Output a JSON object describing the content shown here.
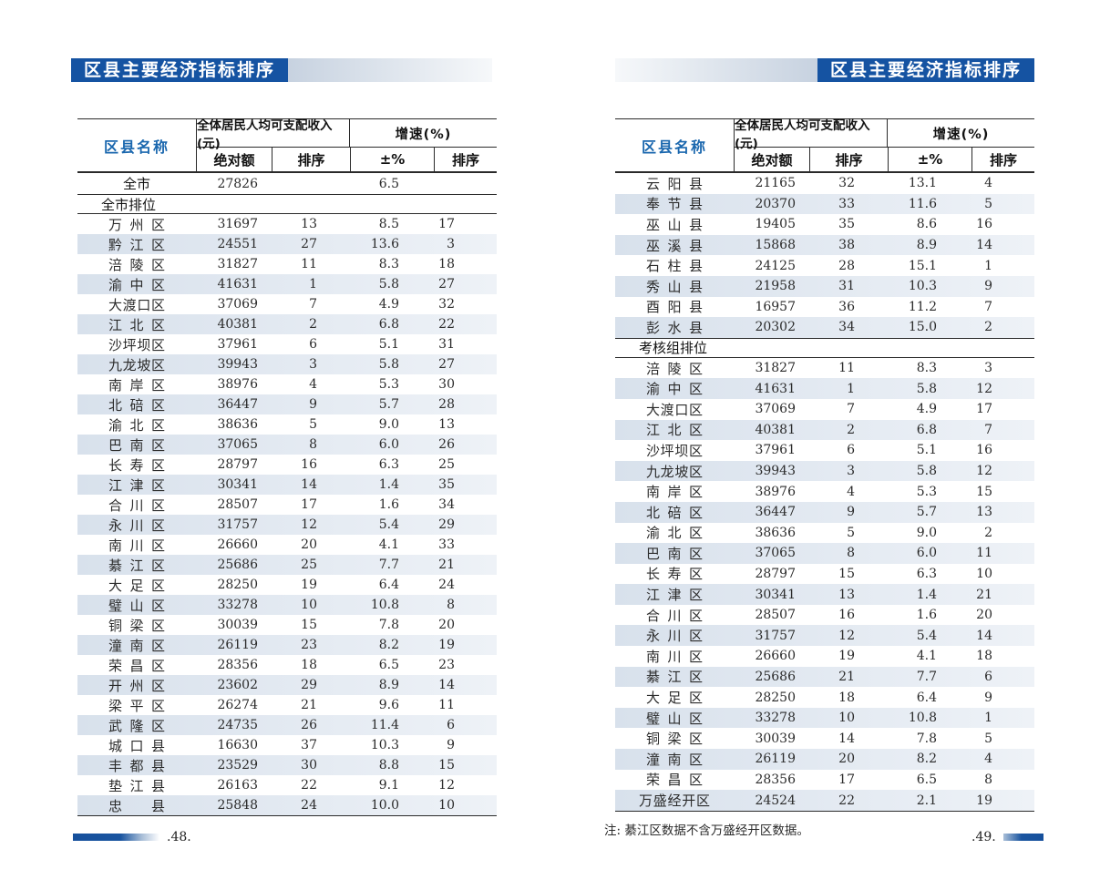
{
  "colors": {
    "title_bg": "#1553a2",
    "header_name_text": "#1a67ae",
    "row_shade": "#dce4ee",
    "footer_bar": "#1a55a0"
  },
  "page_left": {
    "title": "区县主要经济指标排序",
    "page_number": ".48.",
    "table": {
      "header": {
        "name": "区县名称",
        "income_group": "全体居民人均可支配收入(元)",
        "growth_group": "增速(%)",
        "abs": "绝对额",
        "rank1": "排序",
        "pct": "±%",
        "rank2": "排序"
      },
      "summary": {
        "name": "全市",
        "abs": "27826",
        "rank1": "",
        "pct": "6.5",
        "rank2": ""
      },
      "sections": [
        {
          "label": "全市排位",
          "rows": [
            [
              "万州区",
              "31697",
              "13",
              "8.5",
              "17"
            ],
            [
              "黔江区",
              "24551",
              "27",
              "13.6",
              "3"
            ],
            [
              "涪陵区",
              "31827",
              "11",
              "8.3",
              "18"
            ],
            [
              "渝中区",
              "41631",
              "1",
              "5.8",
              "27"
            ],
            [
              "大渡口区",
              "37069",
              "7",
              "4.9",
              "32"
            ],
            [
              "江北区",
              "40381",
              "2",
              "6.8",
              "22"
            ],
            [
              "沙坪坝区",
              "37961",
              "6",
              "5.1",
              "31"
            ],
            [
              "九龙坡区",
              "39943",
              "3",
              "5.8",
              "27"
            ],
            [
              "南岸区",
              "38976",
              "4",
              "5.3",
              "30"
            ],
            [
              "北碚区",
              "36447",
              "9",
              "5.7",
              "28"
            ],
            [
              "渝北区",
              "38636",
              "5",
              "9.0",
              "13"
            ],
            [
              "巴南区",
              "37065",
              "8",
              "6.0",
              "26"
            ],
            [
              "长寿区",
              "28797",
              "16",
              "6.3",
              "25"
            ],
            [
              "江津区",
              "30341",
              "14",
              "1.4",
              "35"
            ],
            [
              "合川区",
              "28507",
              "17",
              "1.6",
              "34"
            ],
            [
              "永川区",
              "31757",
              "12",
              "5.4",
              "29"
            ],
            [
              "南川区",
              "26660",
              "20",
              "4.1",
              "33"
            ],
            [
              "綦江区",
              "25686",
              "25",
              "7.7",
              "21"
            ],
            [
              "大足区",
              "28250",
              "19",
              "6.4",
              "24"
            ],
            [
              "璧山区",
              "33278",
              "10",
              "10.8",
              "8"
            ],
            [
              "铜梁区",
              "30039",
              "15",
              "7.8",
              "20"
            ],
            [
              "潼南区",
              "26119",
              "23",
              "8.2",
              "19"
            ],
            [
              "荣昌区",
              "28356",
              "18",
              "6.5",
              "23"
            ],
            [
              "开州区",
              "23602",
              "29",
              "8.9",
              "14"
            ],
            [
              "梁平区",
              "26274",
              "21",
              "9.6",
              "11"
            ],
            [
              "武隆区",
              "24735",
              "26",
              "11.4",
              "6"
            ],
            [
              "城口县",
              "16630",
              "37",
              "10.3",
              "9"
            ],
            [
              "丰都县",
              "23529",
              "30",
              "8.8",
              "15"
            ],
            [
              "垫江县",
              "26163",
              "22",
              "9.1",
              "12"
            ],
            [
              "忠县",
              "25848",
              "24",
              "10.0",
              "10"
            ]
          ]
        }
      ]
    }
  },
  "page_right": {
    "title": "区县主要经济指标排序",
    "page_number": ".49.",
    "note": "注: 綦江区数据不含万盛经开区数据。",
    "table": {
      "header": {
        "name": "区县名称",
        "income_group": "全体居民人均可支配收入(元)",
        "growth_group": "增速(%)",
        "abs": "绝对额",
        "rank1": "排序",
        "pct": "±%",
        "rank2": "排序"
      },
      "sections": [
        {
          "label": "",
          "rows": [
            [
              "云阳县",
              "21165",
              "32",
              "13.1",
              "4"
            ],
            [
              "奉节县",
              "20370",
              "33",
              "11.6",
              "5"
            ],
            [
              "巫山县",
              "19405",
              "35",
              "8.6",
              "16"
            ],
            [
              "巫溪县",
              "15868",
              "38",
              "8.9",
              "14"
            ],
            [
              "石柱县",
              "24125",
              "28",
              "15.1",
              "1"
            ],
            [
              "秀山县",
              "21958",
              "31",
              "10.3",
              "9"
            ],
            [
              "酉阳县",
              "16957",
              "36",
              "11.2",
              "7"
            ],
            [
              "彭水县",
              "20302",
              "34",
              "15.0",
              "2"
            ]
          ]
        },
        {
          "label": "考核组排位",
          "rows": [
            [
              "涪陵区",
              "31827",
              "11",
              "8.3",
              "3"
            ],
            [
              "渝中区",
              "41631",
              "1",
              "5.8",
              "12"
            ],
            [
              "大渡口区",
              "37069",
              "7",
              "4.9",
              "17"
            ],
            [
              "江北区",
              "40381",
              "2",
              "6.8",
              "7"
            ],
            [
              "沙坪坝区",
              "37961",
              "6",
              "5.1",
              "16"
            ],
            [
              "九龙坡区",
              "39943",
              "3",
              "5.8",
              "12"
            ],
            [
              "南岸区",
              "38976",
              "4",
              "5.3",
              "15"
            ],
            [
              "北碚区",
              "36447",
              "9",
              "5.7",
              "13"
            ],
            [
              "渝北区",
              "38636",
              "5",
              "9.0",
              "2"
            ],
            [
              "巴南区",
              "37065",
              "8",
              "6.0",
              "11"
            ],
            [
              "长寿区",
              "28797",
              "15",
              "6.3",
              "10"
            ],
            [
              "江津区",
              "30341",
              "13",
              "1.4",
              "21"
            ],
            [
              "合川区",
              "28507",
              "16",
              "1.6",
              "20"
            ],
            [
              "永川区",
              "31757",
              "12",
              "5.4",
              "14"
            ],
            [
              "南川区",
              "26660",
              "19",
              "4.1",
              "18"
            ],
            [
              "綦江区",
              "25686",
              "21",
              "7.7",
              "6"
            ],
            [
              "大足区",
              "28250",
              "18",
              "6.4",
              "9"
            ],
            [
              "璧山区",
              "33278",
              "10",
              "10.8",
              "1"
            ],
            [
              "铜梁区",
              "30039",
              "14",
              "7.8",
              "5"
            ],
            [
              "潼南区",
              "26119",
              "20",
              "8.2",
              "4"
            ],
            [
              "荣昌区",
              "28356",
              "17",
              "6.5",
              "8"
            ],
            [
              "万盛经开区",
              "24524",
              "22",
              "2.1",
              "19"
            ]
          ]
        }
      ]
    }
  }
}
